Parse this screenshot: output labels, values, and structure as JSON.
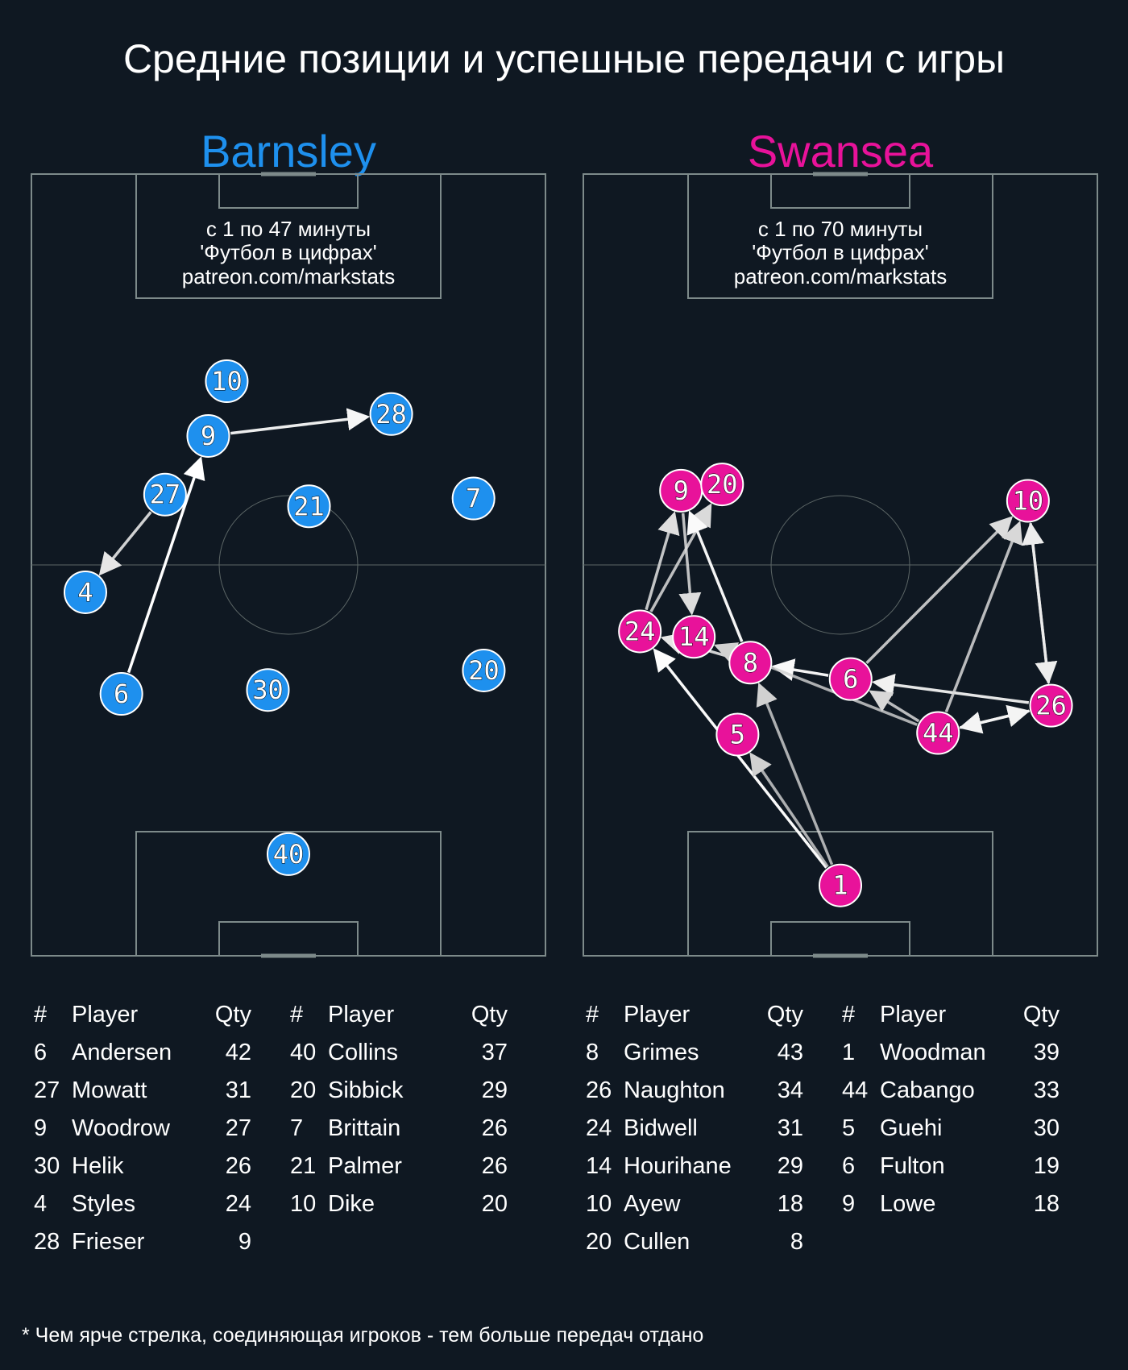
{
  "title": "Средние позиции и успешные передачи с игры",
  "footnote": "* Чем ярче стрелка, соединяющая игроков - тем больше передач отдано",
  "colors": {
    "background": "#0f1822",
    "barnsley": "#1e90ee",
    "swansea": "#e8129a",
    "pitch_lines": "#7d8a8a"
  },
  "chart_data": [
    {
      "type": "scatter",
      "team": "Barnsley",
      "color": "#1e90ee",
      "info_lines": [
        "с 1 по 47 минуты",
        "'Футбол в цифрах'",
        "patreon.com/markstats"
      ],
      "players": [
        {
          "num": "10",
          "x": 38,
          "y": 73.5
        },
        {
          "num": "9",
          "x": 34.4,
          "y": 66.5
        },
        {
          "num": "28",
          "x": 70,
          "y": 69.3
        },
        {
          "num": "27",
          "x": 26,
          "y": 59
        },
        {
          "num": "7",
          "x": 86,
          "y": 58.5
        },
        {
          "num": "21",
          "x": 54,
          "y": 57.5
        },
        {
          "num": "4",
          "x": 10.5,
          "y": 46.5
        },
        {
          "num": "6",
          "x": 17.5,
          "y": 33.5
        },
        {
          "num": "30",
          "x": 46,
          "y": 34
        },
        {
          "num": "20",
          "x": 88,
          "y": 36.5
        },
        {
          "num": "40",
          "x": 50,
          "y": 13
        }
      ],
      "passes": [
        {
          "from": "9",
          "to": "28",
          "intensity": 0.92
        },
        {
          "from": "6",
          "to": "9",
          "intensity": 1.0
        },
        {
          "from": "27",
          "to": "4",
          "intensity": 0.78
        }
      ],
      "table_headers": [
        "#",
        "Player",
        "Qty"
      ],
      "table_columns": [
        [
          {
            "num": "6",
            "player": "Andersen",
            "qty": "42"
          },
          {
            "num": "27",
            "player": "Mowatt",
            "qty": "31"
          },
          {
            "num": "9",
            "player": "Woodrow",
            "qty": "27"
          },
          {
            "num": "30",
            "player": "Helik",
            "qty": "26"
          },
          {
            "num": "4",
            "player": "Styles",
            "qty": "24"
          },
          {
            "num": "28",
            "player": "Frieser",
            "qty": "9"
          }
        ],
        [
          {
            "num": "40",
            "player": "Collins",
            "qty": "37"
          },
          {
            "num": "20",
            "player": "Sibbick",
            "qty": "29"
          },
          {
            "num": "7",
            "player": "Brittain",
            "qty": "26"
          },
          {
            "num": "21",
            "player": "Palmer",
            "qty": "26"
          },
          {
            "num": "10",
            "player": "Dike",
            "qty": "20"
          }
        ]
      ]
    },
    {
      "type": "scatter",
      "team": "Swansea",
      "color": "#e8129a",
      "info_lines": [
        "с 1 по 70 минуты",
        "'Футбол в цифрах'",
        "patreon.com/markstats"
      ],
      "players": [
        {
          "num": "9",
          "x": 19,
          "y": 59.5
        },
        {
          "num": "20",
          "x": 27,
          "y": 60.3
        },
        {
          "num": "10",
          "x": 86.5,
          "y": 58.2
        },
        {
          "num": "24",
          "x": 11,
          "y": 41.5
        },
        {
          "num": "14",
          "x": 21.5,
          "y": 40.8
        },
        {
          "num": "8",
          "x": 32.5,
          "y": 37.5
        },
        {
          "num": "6",
          "x": 52,
          "y": 35.4
        },
        {
          "num": "26",
          "x": 91,
          "y": 32
        },
        {
          "num": "44",
          "x": 69,
          "y": 28.5
        },
        {
          "num": "5",
          "x": 30,
          "y": 28.3
        },
        {
          "num": "1",
          "x": 50,
          "y": 9
        }
      ],
      "passes": [
        {
          "from": "24",
          "to": "9",
          "intensity": 0.72
        },
        {
          "from": "24",
          "to": "20",
          "intensity": 0.68
        },
        {
          "from": "9",
          "to": "14",
          "intensity": 0.7
        },
        {
          "from": "8",
          "to": "9",
          "intensity": 0.96
        },
        {
          "from": "8",
          "to": "24",
          "intensity": 0.78
        },
        {
          "from": "6",
          "to": "8",
          "intensity": 0.95
        },
        {
          "from": "6",
          "to": "10",
          "intensity": 0.7
        },
        {
          "from": "26",
          "to": "6",
          "intensity": 0.88
        },
        {
          "from": "44",
          "to": "14",
          "intensity": 0.6
        },
        {
          "from": "44",
          "to": "6",
          "intensity": 0.66
        },
        {
          "from": "44",
          "to": "10",
          "intensity": 0.66
        },
        {
          "from": "44",
          "to": "26",
          "intensity": 0.9
        },
        {
          "from": "26",
          "to": "44",
          "intensity": 0.9
        },
        {
          "from": "10",
          "to": "26",
          "intensity": 0.84
        },
        {
          "from": "26",
          "to": "10",
          "intensity": 0.84
        },
        {
          "from": "1",
          "to": "24",
          "intensity": 0.98
        },
        {
          "from": "1",
          "to": "5",
          "intensity": 0.6
        },
        {
          "from": "1",
          "to": "8",
          "intensity": 0.6
        }
      ],
      "table_headers": [
        "#",
        "Player",
        "Qty"
      ],
      "table_columns": [
        [
          {
            "num": "8",
            "player": "Grimes",
            "qty": "43"
          },
          {
            "num": "26",
            "player": "Naughton",
            "qty": "34"
          },
          {
            "num": "24",
            "player": "Bidwell",
            "qty": "31"
          },
          {
            "num": "14",
            "player": "Hourihane",
            "qty": "29"
          },
          {
            "num": "10",
            "player": "Ayew",
            "qty": "18"
          },
          {
            "num": "20",
            "player": "Cullen",
            "qty": "8"
          }
        ],
        [
          {
            "num": "1",
            "player": "Woodman",
            "qty": "39"
          },
          {
            "num": "44",
            "player": "Cabango",
            "qty": "33"
          },
          {
            "num": "5",
            "player": "Guehi",
            "qty": "30"
          },
          {
            "num": "6",
            "player": "Fulton",
            "qty": "19"
          },
          {
            "num": "9",
            "player": "Lowe",
            "qty": "18"
          }
        ]
      ]
    }
  ]
}
